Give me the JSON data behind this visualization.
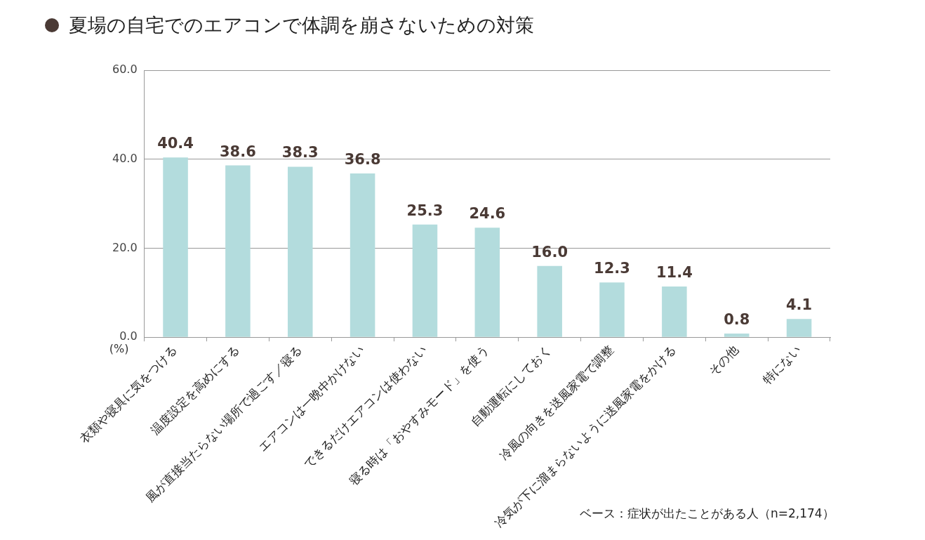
{
  "chart_data": {
    "type": "bar",
    "title": "夏場の自宅でのエアコンで体調を崩さないための対策",
    "categories": [
      "衣類や寝具に気をつける",
      "温度設定を高めにする",
      "風が直接当たらない場所で過ごす／寝る",
      "エアコンは一晩中かけない",
      "できるだけエアコンは使わない",
      "寝る時は「おやすみモード」を使う",
      "自動運転にしておく",
      "冷風の向きを送風家電で調整",
      "冷気が下に溜まらないように送風家電をかける",
      "その他",
      "特にない"
    ],
    "values": [
      40.4,
      38.6,
      38.3,
      36.8,
      25.3,
      24.6,
      16.0,
      12.3,
      11.4,
      0.8,
      4.1
    ],
    "value_labels": [
      "40.4",
      "38.6",
      "38.3",
      "36.8",
      "25.3",
      "24.6",
      "16.0",
      "12.3",
      "11.4",
      "0.8",
      "4.1"
    ],
    "color": "#b3dcdd",
    "ylabel": "(%)",
    "ylim": [
      0,
      60
    ],
    "yticks": [
      {
        "value": 0,
        "label": "0.0"
      },
      {
        "value": 20,
        "label": "20.0"
      },
      {
        "value": 40,
        "label": "40.0"
      },
      {
        "value": 60,
        "label": "60.0"
      }
    ],
    "grid": "y",
    "legend": false,
    "annotations": [
      "ベース：症状が出たことがある人（n=2,174）"
    ]
  }
}
